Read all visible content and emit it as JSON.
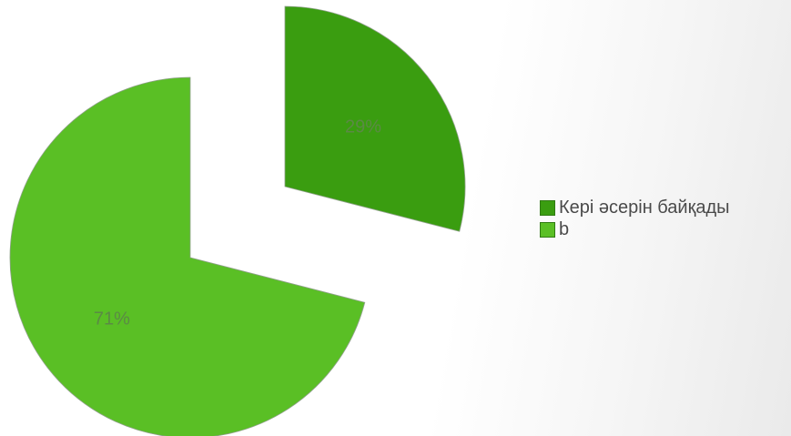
{
  "chart_data": {
    "type": "pie",
    "title": "",
    "slices": [
      {
        "label": "Кері әсерін байқады",
        "value": 29,
        "display": "29%",
        "color": "#3a9d10"
      },
      {
        "label": "b",
        "value": 71,
        "display": "71%",
        "color": "#5abf25"
      }
    ],
    "legend_position": "right",
    "exploded": true
  }
}
